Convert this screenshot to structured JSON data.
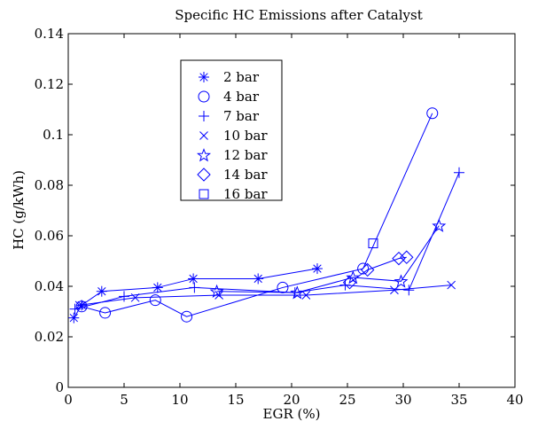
{
  "chart_data": {
    "type": "line",
    "title": "Specific HC Emissions after Catalyst",
    "xlabel": "EGR (%)",
    "ylabel": "HC (g/kWh)",
    "xlim": [
      0,
      40
    ],
    "ylim": [
      0,
      0.14
    ],
    "xticks": [
      0,
      5,
      10,
      15,
      20,
      25,
      30,
      35,
      40
    ],
    "xtick_labels": [
      "0",
      "5",
      "10",
      "15",
      "20",
      "25",
      "30",
      "35",
      "40"
    ],
    "yticks": [
      0,
      0.02,
      0.04,
      0.06,
      0.08,
      0.1,
      0.12,
      0.14
    ],
    "ytick_labels": [
      "0",
      "0.02",
      "0.04",
      "0.06",
      "0.08",
      "0.1",
      "0.12",
      "0.14"
    ],
    "grid": false,
    "legend_position": "top-left",
    "color": "#0000ff",
    "series": [
      {
        "name": "2 bar",
        "marker": "asterisk",
        "x": [
          0.5,
          1.2,
          3.0,
          8.0,
          11.2,
          17.0,
          22.3
        ],
        "y": [
          0.0275,
          0.0325,
          0.038,
          0.0395,
          0.043,
          0.043,
          0.047
        ]
      },
      {
        "name": "4 bar",
        "marker": "circle",
        "x": [
          1.2,
          3.3,
          7.8,
          10.6,
          19.2,
          26.4,
          32.6
        ],
        "y": [
          0.032,
          0.0295,
          0.0345,
          0.028,
          0.0395,
          0.047,
          0.1085
        ]
      },
      {
        "name": "7 bar",
        "marker": "plus",
        "x": [
          0.6,
          5.0,
          11.3,
          20.3,
          24.8,
          30.5,
          35.0
        ],
        "y": [
          0.031,
          0.036,
          0.0395,
          0.0375,
          0.0405,
          0.0385,
          0.085
        ]
      },
      {
        "name": "10 bar",
        "marker": "x",
        "x": [
          1.0,
          6.0,
          13.5,
          21.3,
          29.2,
          34.3
        ],
        "y": [
          0.0325,
          0.0355,
          0.0365,
          0.0365,
          0.0385,
          0.0405
        ]
      },
      {
        "name": "12 bar",
        "marker": "star",
        "x": [
          13.3,
          20.5,
          25.5,
          29.8,
          33.2
        ],
        "y": [
          0.038,
          0.0375,
          0.0435,
          0.042,
          0.064
        ]
      },
      {
        "name": "14 bar",
        "marker": "diamond",
        "x": [
          25.2,
          26.8,
          29.6,
          30.3
        ],
        "y": [
          0.0415,
          0.0465,
          0.051,
          0.0515
        ]
      },
      {
        "name": "16 bar",
        "marker": "square",
        "x": [
          27.3
        ],
        "y": [
          0.057
        ]
      }
    ]
  }
}
